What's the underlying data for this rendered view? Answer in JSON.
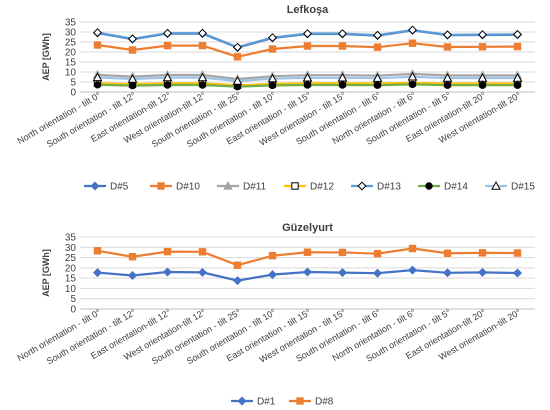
{
  "categories": [
    "North orientation - tilt 0°",
    "South orientation - tilt 12°",
    "East orientation-tilt 12°",
    "West orientation-tilt 12°",
    "South orientation - tilt 25°",
    "South orientation - tilt 10°",
    "East orientation - tilt 15°",
    "West orientation - tilt 15°",
    "South orientation - tilt 6°",
    "North orientation - tilt 6°",
    "South orientation - tilt 5°",
    "East orientation-tilt 20°",
    "West orientation-tilt 20°"
  ],
  "chart_data": [
    {
      "type": "line",
      "title": "Lefkoşa",
      "ylabel": "AEP [GWh]",
      "ylim": [
        0,
        35
      ],
      "yticks": [
        0,
        5,
        10,
        15,
        20,
        25,
        30,
        35
      ],
      "grid": true,
      "legend": "bottom",
      "series": [
        {
          "name": "D#5",
          "color": "#4472C4",
          "marker": "diamond",
          "values": [
            29.5,
            26.4,
            29.2,
            29.2,
            22.2,
            27.0,
            29.0,
            29.0,
            28.2,
            30.8,
            28.4,
            28.5,
            28.6
          ]
        },
        {
          "name": "D#10",
          "color": "#ED7D31",
          "marker": "square",
          "values": [
            23.5,
            21.0,
            23.2,
            23.2,
            17.6,
            21.5,
            23.0,
            23.0,
            22.4,
            24.4,
            22.5,
            22.6,
            22.7
          ]
        },
        {
          "name": "D#11",
          "color": "#A5A5A5",
          "marker": "triangle",
          "values": [
            8.6,
            7.7,
            8.5,
            8.5,
            6.5,
            7.9,
            8.4,
            8.4,
            8.2,
            9.0,
            8.3,
            8.3,
            8.3
          ]
        },
        {
          "name": "D#12",
          "color": "#FFC000",
          "marker": "square-open",
          "values": [
            4.4,
            3.9,
            4.3,
            4.3,
            3.3,
            4.0,
            4.3,
            4.3,
            4.2,
            4.6,
            4.2,
            4.2,
            4.2
          ]
        },
        {
          "name": "D#13",
          "color": "#5B9BD5",
          "marker": "diamond-open",
          "values": [
            29.7,
            26.6,
            29.4,
            29.4,
            22.4,
            27.2,
            29.2,
            29.2,
            28.4,
            31.0,
            28.6,
            28.7,
            28.8
          ]
        },
        {
          "name": "D#14",
          "color": "#70AD47",
          "marker": "circle",
          "values": [
            3.6,
            3.2,
            3.5,
            3.5,
            2.7,
            3.3,
            3.5,
            3.5,
            3.4,
            3.8,
            3.4,
            3.4,
            3.4
          ]
        },
        {
          "name": "D#15",
          "color": "#9DC3E6",
          "marker": "triangle-open",
          "values": [
            7.3,
            6.5,
            7.2,
            7.2,
            5.5,
            6.7,
            7.1,
            7.1,
            6.9,
            7.6,
            7.0,
            7.0,
            7.0
          ]
        }
      ]
    },
    {
      "type": "line",
      "title": "Güzelyurt",
      "ylabel": "AEP [GWh]",
      "ylim": [
        0,
        35
      ],
      "yticks": [
        0,
        5,
        10,
        15,
        20,
        25,
        30,
        35
      ],
      "grid": true,
      "legend": "bottom",
      "series": [
        {
          "name": "D#1",
          "color": "#4472C4",
          "marker": "diamond",
          "values": [
            17.7,
            16.3,
            18.0,
            17.8,
            13.8,
            16.7,
            18.0,
            17.7,
            17.4,
            18.9,
            17.6,
            17.8,
            17.5
          ]
        },
        {
          "name": "D#8",
          "color": "#ED7D31",
          "marker": "square",
          "values": [
            28.3,
            25.4,
            27.9,
            27.8,
            21.3,
            25.9,
            27.6,
            27.5,
            26.9,
            29.4,
            27.1,
            27.3,
            27.2
          ]
        }
      ]
    }
  ]
}
